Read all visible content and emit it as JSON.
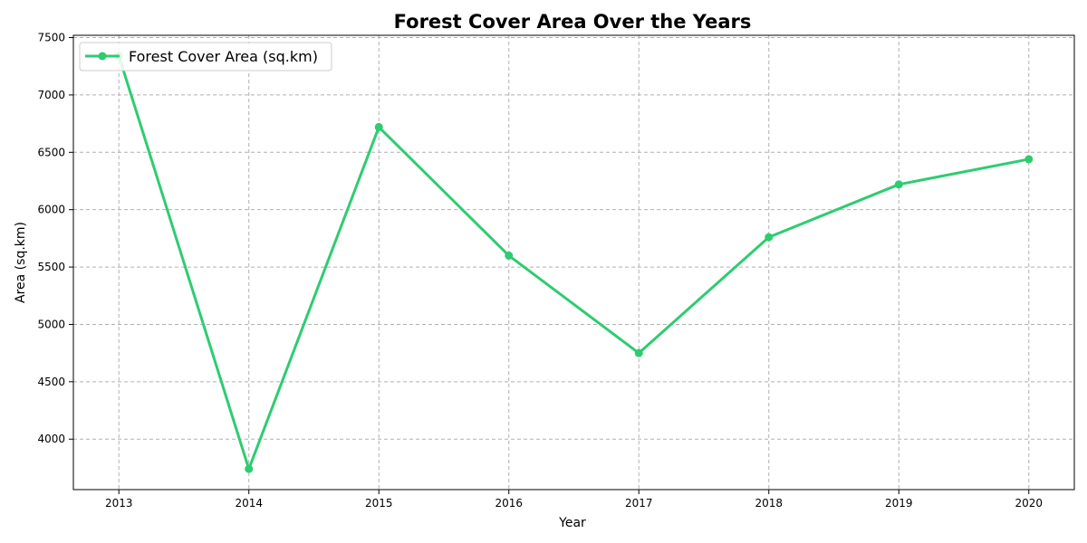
{
  "chart_data": {
    "type": "line",
    "title": "Forest Cover Area Over the Years",
    "xlabel": "Year",
    "ylabel": "Area (sq.km)",
    "x": [
      2013,
      2014,
      2015,
      2016,
      2017,
      2018,
      2019,
      2020
    ],
    "x_tick_labels": [
      "2013",
      "2014",
      "2015",
      "2016",
      "2017",
      "2018",
      "2019",
      "2020"
    ],
    "y_ticks": [
      4000,
      4500,
      5000,
      5500,
      6000,
      6500,
      7000,
      7500
    ],
    "y_tick_labels": [
      "4000",
      "4500",
      "5000",
      "5500",
      "6000",
      "6500",
      "7000",
      "7500"
    ],
    "xlim": [
      2012.65,
      2020.35
    ],
    "ylim": [
      3560,
      7520
    ],
    "grid": true,
    "legend_position": "upper-left",
    "series": [
      {
        "name": "Forest Cover Area (sq.km)",
        "color": "#2ecc71",
        "values": [
          7340,
          3740,
          6720,
          5600,
          4750,
          5760,
          6220,
          6440
        ]
      }
    ]
  }
}
